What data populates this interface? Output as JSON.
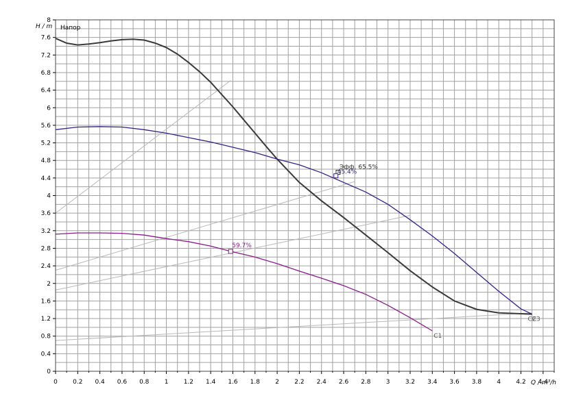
{
  "chart_data": {
    "type": "line",
    "title": "Напор",
    "ylabel": "H / m",
    "xlabel": "Q / m³/h",
    "xlim": [
      0,
      4.5
    ],
    "ylim": [
      0,
      8
    ],
    "x_ticks": [
      0,
      0.2,
      0.4,
      0.6,
      0.8,
      1,
      1.2,
      1.4,
      1.6,
      1.8,
      2,
      2.2,
      2.4,
      2.6,
      2.8,
      3,
      3.2,
      3.4,
      3.6,
      3.8,
      4,
      4.2,
      4.4
    ],
    "x_tick_labels": [
      "0",
      "0.2",
      "0.4",
      "0.6",
      "0.8",
      "1",
      "1.2",
      "1.4",
      "1.6",
      "1.8",
      "2",
      "2.2",
      "2.4",
      "2.6",
      "2.8",
      "3",
      "3.2",
      "3.4",
      "3.6",
      "3.8",
      "4",
      "4.2",
      "4.4"
    ],
    "y_ticks": [
      0,
      0.4,
      0.8,
      1.2,
      1.6,
      2,
      2.4,
      2.8,
      3.2,
      3.6,
      4,
      4.4,
      4.8,
      5.2,
      5.6,
      6,
      6.4,
      6.8,
      7.2,
      7.6,
      8
    ],
    "y_tick_labels": [
      "0",
      "0.4",
      "0.8",
      "1.2",
      "1.6",
      "2",
      "2.4",
      "2.8",
      "3.2",
      "3.6",
      "4",
      "4.4",
      "4.8",
      "5.2",
      "5.6",
      "6",
      "6.4",
      "6.8",
      "7.2",
      "7.6",
      "8"
    ],
    "grid": true,
    "series": [
      {
        "name": "C3",
        "color": "#3a3a3a",
        "points": [
          [
            0,
            7.58
          ],
          [
            0.1,
            7.47
          ],
          [
            0.2,
            7.43
          ],
          [
            0.3,
            7.45
          ],
          [
            0.4,
            7.48
          ],
          [
            0.5,
            7.52
          ],
          [
            0.6,
            7.55
          ],
          [
            0.7,
            7.56
          ],
          [
            0.8,
            7.54
          ],
          [
            0.9,
            7.47
          ],
          [
            1.0,
            7.37
          ],
          [
            1.1,
            7.22
          ],
          [
            1.2,
            7.03
          ],
          [
            1.3,
            6.82
          ],
          [
            1.4,
            6.58
          ],
          [
            1.5,
            6.3
          ],
          [
            1.6,
            6.02
          ],
          [
            1.7,
            5.72
          ],
          [
            1.8,
            5.42
          ],
          [
            1.9,
            5.12
          ],
          [
            2.0,
            4.83
          ],
          [
            2.2,
            4.3
          ],
          [
            2.4,
            3.88
          ],
          [
            2.6,
            3.5
          ],
          [
            2.8,
            3.1
          ],
          [
            3.0,
            2.7
          ],
          [
            3.2,
            2.29
          ],
          [
            3.4,
            1.92
          ],
          [
            3.6,
            1.6
          ],
          [
            3.8,
            1.41
          ],
          [
            4.0,
            1.33
          ],
          [
            4.3,
            1.3
          ]
        ]
      },
      {
        "name": "C2",
        "color": "#3a1f8a",
        "points": [
          [
            0,
            5.5
          ],
          [
            0.2,
            5.56
          ],
          [
            0.4,
            5.57
          ],
          [
            0.6,
            5.56
          ],
          [
            0.8,
            5.5
          ],
          [
            1.0,
            5.42
          ],
          [
            1.2,
            5.32
          ],
          [
            1.4,
            5.22
          ],
          [
            1.6,
            5.1
          ],
          [
            1.8,
            4.98
          ],
          [
            2.0,
            4.83
          ],
          [
            2.2,
            4.7
          ],
          [
            2.4,
            4.52
          ],
          [
            2.6,
            4.3
          ],
          [
            2.8,
            4.08
          ],
          [
            3.0,
            3.8
          ],
          [
            3.2,
            3.45
          ],
          [
            3.4,
            3.08
          ],
          [
            3.6,
            2.68
          ],
          [
            3.8,
            2.25
          ],
          [
            4.0,
            1.82
          ],
          [
            4.2,
            1.42
          ],
          [
            4.3,
            1.3
          ]
        ]
      },
      {
        "name": "C1",
        "color": "#8b1a8b",
        "points": [
          [
            0,
            3.12
          ],
          [
            0.2,
            3.15
          ],
          [
            0.4,
            3.15
          ],
          [
            0.6,
            3.14
          ],
          [
            0.8,
            3.1
          ],
          [
            1.0,
            3.02
          ],
          [
            1.2,
            2.95
          ],
          [
            1.4,
            2.85
          ],
          [
            1.58,
            2.73
          ],
          [
            1.8,
            2.6
          ],
          [
            2.0,
            2.45
          ],
          [
            2.2,
            2.28
          ],
          [
            2.4,
            2.12
          ],
          [
            2.6,
            1.95
          ],
          [
            2.8,
            1.75
          ],
          [
            3.0,
            1.5
          ],
          [
            3.2,
            1.22
          ],
          [
            3.4,
            0.92
          ]
        ]
      }
    ],
    "reference_lines": [
      {
        "name": "system-curve-1",
        "points": [
          [
            0,
            3.6
          ],
          [
            1.58,
            6.62
          ]
        ]
      },
      {
        "name": "system-curve-2",
        "points": [
          [
            0,
            2.3
          ],
          [
            2.7,
            4.32
          ]
        ]
      },
      {
        "name": "system-curve-3",
        "points": [
          [
            0,
            1.85
          ],
          [
            3.2,
            3.55
          ]
        ]
      },
      {
        "name": "system-curve-4",
        "points": [
          [
            0,
            0.7
          ],
          [
            4.3,
            1.33
          ]
        ]
      }
    ],
    "annotations": [
      {
        "name": "C3",
        "label": "C3",
        "x": 4.3,
        "y": 1.3,
        "color": "#555555"
      },
      {
        "name": "C2",
        "label": "C2",
        "x": 4.28,
        "y": 1.3,
        "color": "#555555"
      },
      {
        "name": "C1",
        "label": "C1",
        "x": 3.4,
        "y": 0.92,
        "color": "#555555"
      }
    ],
    "operating_points": [
      {
        "name": "op-c3",
        "label": "Эфф. 65.5%",
        "x": 2.55,
        "y": 4.53,
        "color": "#333333"
      },
      {
        "name": "op-c2",
        "label": "45.4%",
        "x": 2.53,
        "y": 4.45,
        "color": "#3a1f8a"
      },
      {
        "name": "op-c1",
        "label": "59.7%",
        "x": 1.58,
        "y": 2.73,
        "color": "#8b1a8b"
      }
    ]
  }
}
